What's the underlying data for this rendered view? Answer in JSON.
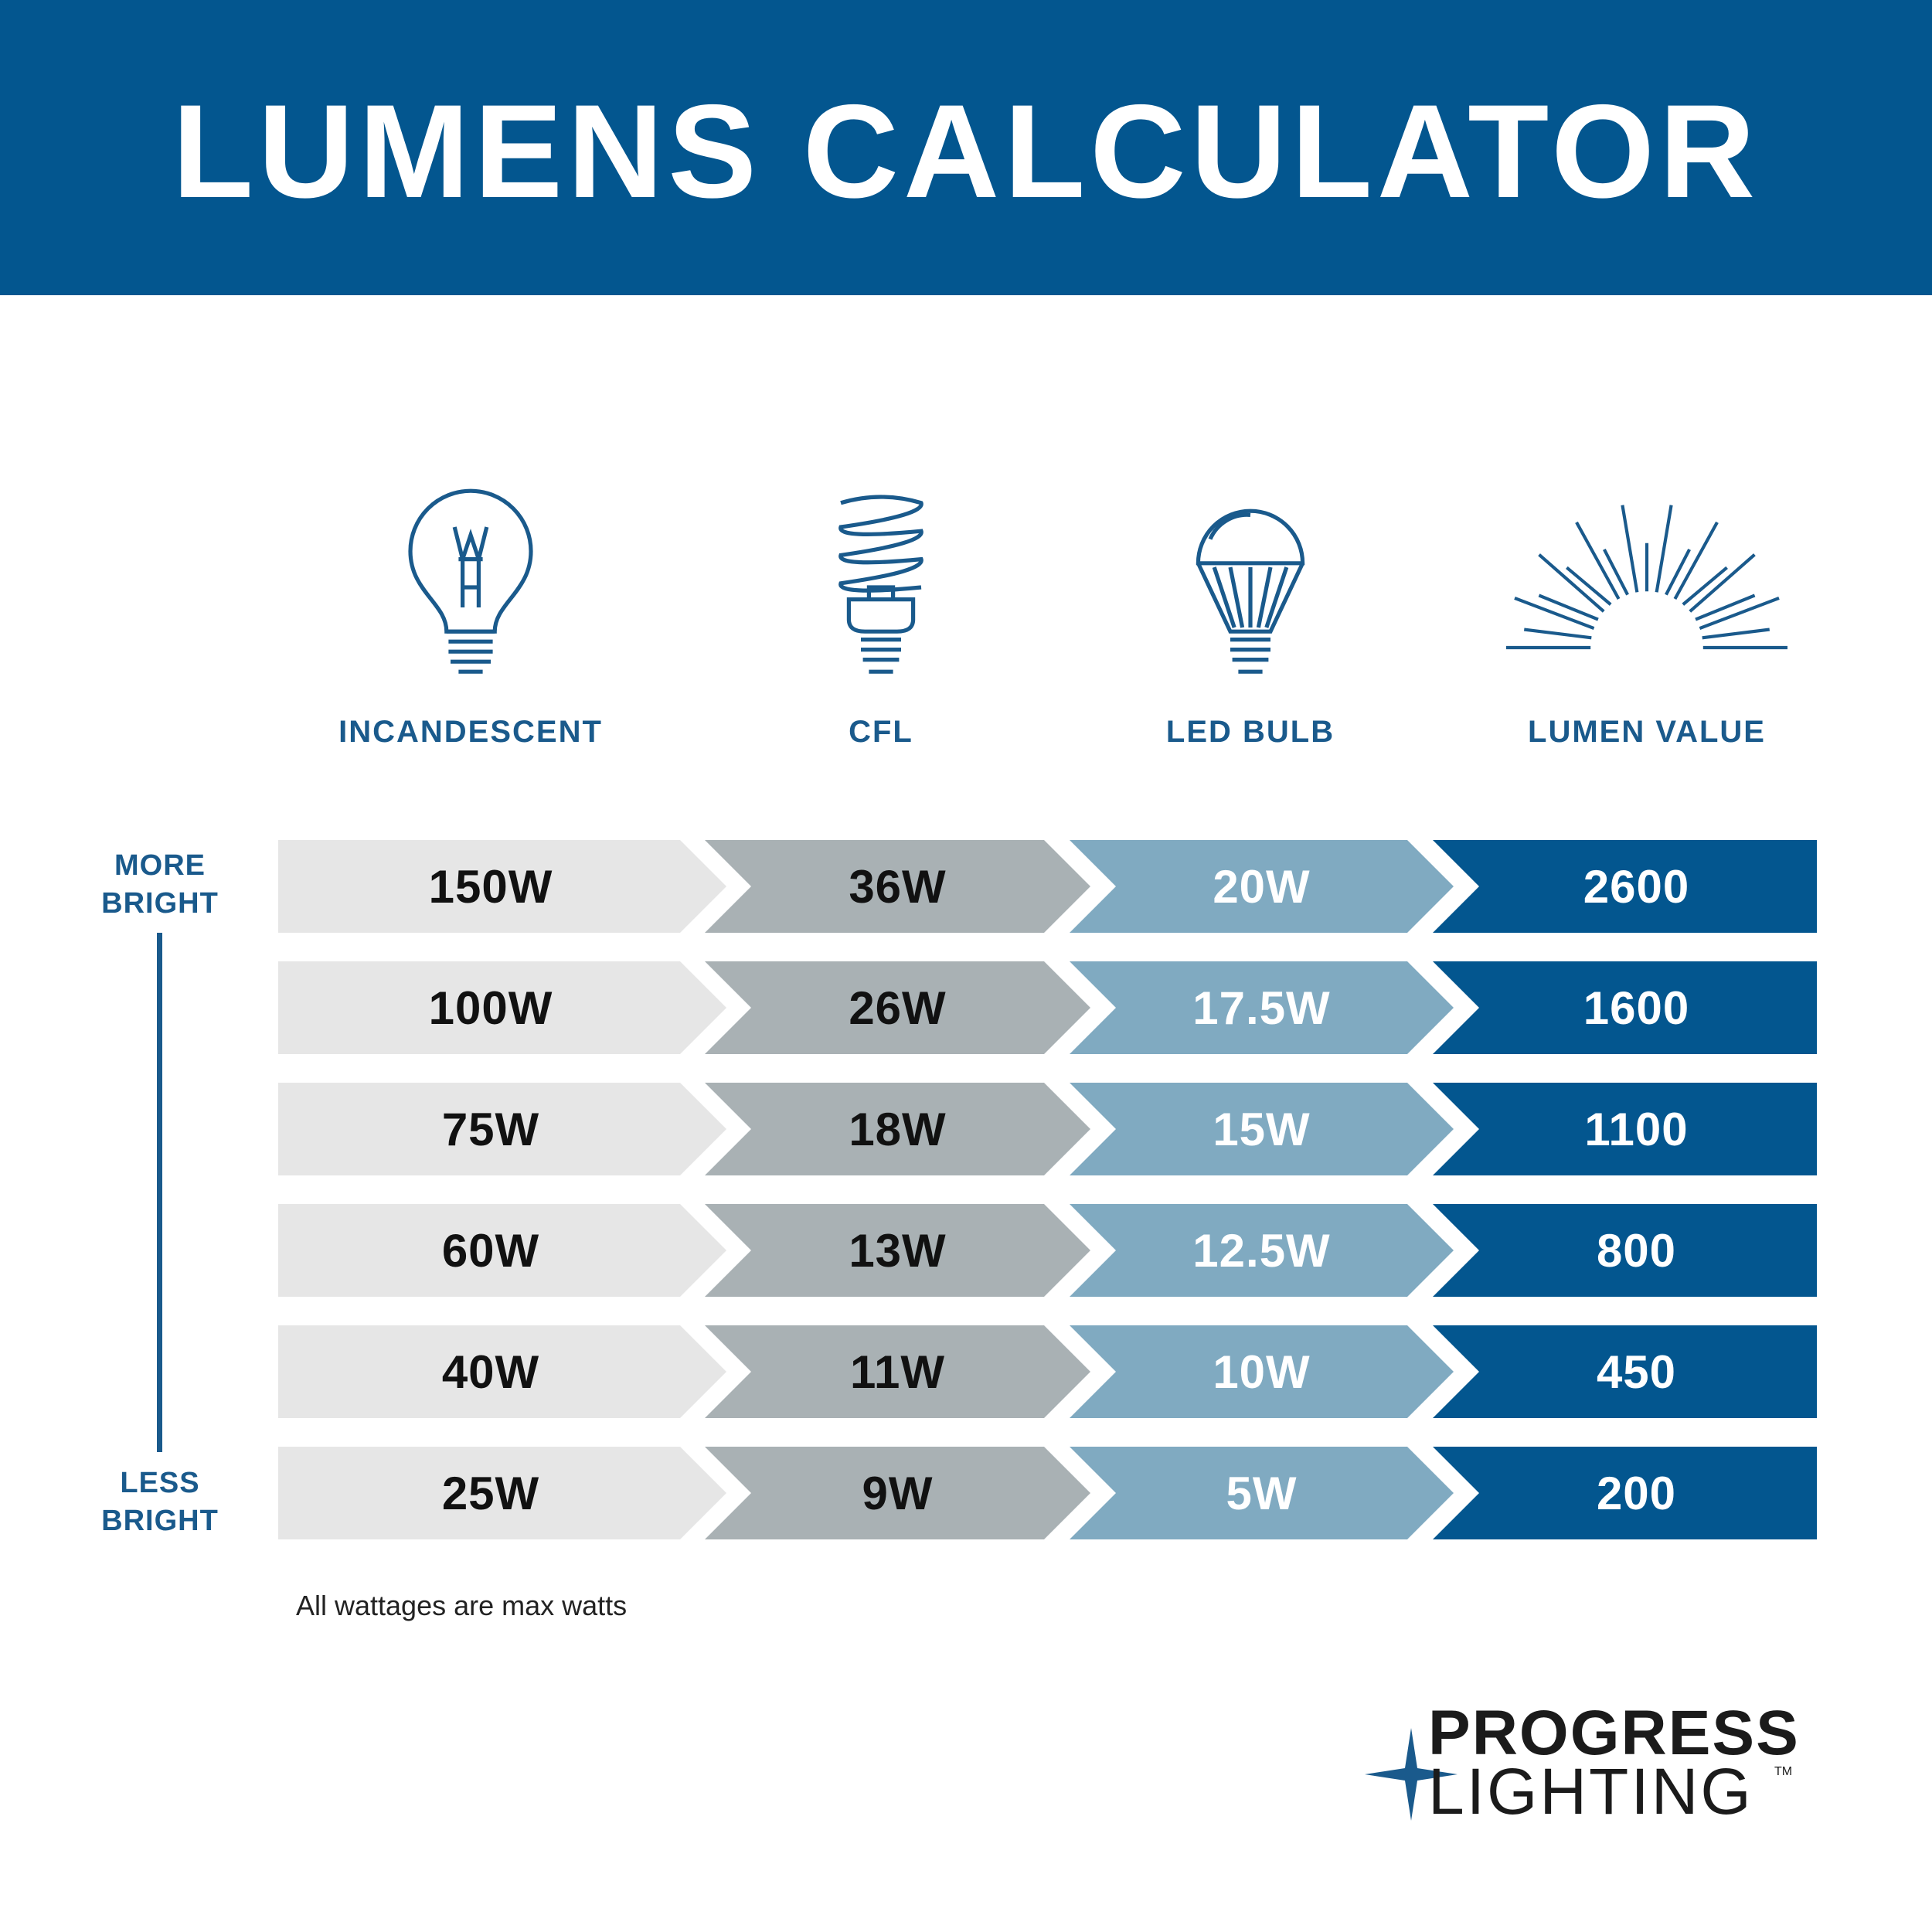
{
  "header": {
    "title": "LUMENS CALCULATOR"
  },
  "columns": [
    {
      "label": "INCANDESCENT",
      "icon": "incandescent-bulb-icon"
    },
    {
      "label": "CFL",
      "icon": "cfl-bulb-icon"
    },
    {
      "label": "LED BULB",
      "icon": "led-bulb-icon"
    },
    {
      "label": "LUMEN VALUE",
      "icon": "light-rays-icon"
    }
  ],
  "rows": [
    [
      "150W",
      "36W",
      "20W",
      "2600"
    ],
    [
      "100W",
      "26W",
      "17.5W",
      "1600"
    ],
    [
      "75W",
      "18W",
      "15W",
      "1100"
    ],
    [
      "60W",
      "13W",
      "12.5W",
      "800"
    ],
    [
      "40W",
      "11W",
      "10W",
      "450"
    ],
    [
      "25W",
      "9W",
      "5W",
      "200"
    ]
  ],
  "scale": {
    "top_label_1": "MORE",
    "top_label_2": "BRIGHT",
    "bottom_label_1": "LESS",
    "bottom_label_2": "BRIGHT"
  },
  "footnote": "All wattages are max watts",
  "logo": {
    "line1": "PROGRESS",
    "line2": "LIGHTING",
    "tm": "TM"
  },
  "colors": {
    "brand_blue": "#03568f",
    "incandescent": "#e6e6e6",
    "cfl": "#a9b1b4",
    "led": "#80aac1",
    "lumens": "#03568f"
  }
}
